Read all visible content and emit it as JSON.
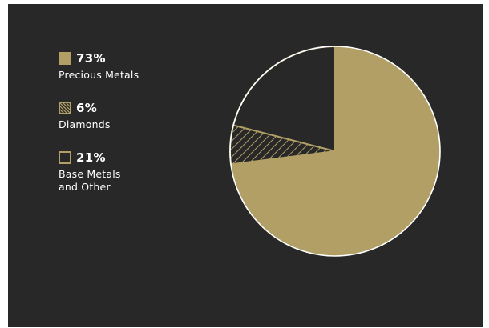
{
  "chart_data": {
    "type": "pie",
    "slices": [
      {
        "label": "Precious Metals",
        "value": 73,
        "value_label": "73%",
        "fill": "solid"
      },
      {
        "label": "Diamonds",
        "value": 6,
        "value_label": "6%",
        "fill": "hatched"
      },
      {
        "label": "Base Metals\nand Other",
        "value": 21,
        "value_label": "21%",
        "fill": "outline"
      }
    ],
    "start_angle_deg": 0,
    "direction": "clockwise",
    "legend_placement": "left"
  },
  "colors": {
    "background": "#282828",
    "accent": "#b19f66",
    "text": "#ffffff",
    "outer": "#ffffff"
  }
}
